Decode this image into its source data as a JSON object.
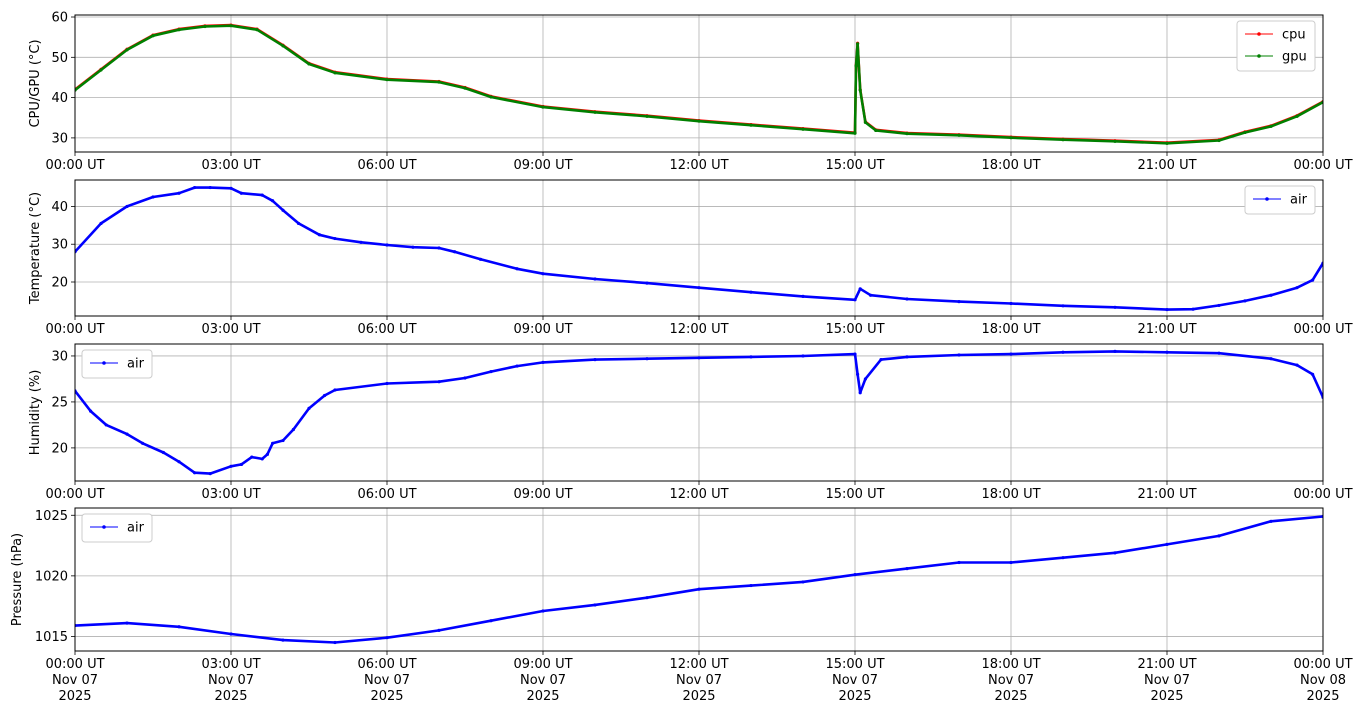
{
  "chart_data": [
    {
      "type": "line",
      "ylabel": "CPU/GPU (°C)",
      "ylim": [
        26.5,
        60.5
      ],
      "yticks": [
        30,
        40,
        50,
        60
      ],
      "x_hours": [
        0,
        24
      ],
      "xticks": [
        "00:00 UT",
        "03:00 UT",
        "06:00 UT",
        "09:00 UT",
        "12:00 UT",
        "15:00 UT",
        "18:00 UT",
        "21:00 UT",
        "00:00 UT"
      ],
      "grid": true,
      "legend": "upper-right",
      "series": [
        {
          "name": "cpu",
          "color": "#ff0000",
          "points": [
            [
              0,
              42
            ],
            [
              0.5,
              47
            ],
            [
              1,
              52
            ],
            [
              1.5,
              55.5
            ],
            [
              2,
              57
            ],
            [
              2.5,
              57.8
            ],
            [
              3,
              58
            ],
            [
              3.5,
              57
            ],
            [
              4,
              53
            ],
            [
              4.5,
              48.5
            ],
            [
              5,
              46.3
            ],
            [
              6,
              44.6
            ],
            [
              7,
              44
            ],
            [
              7.5,
              42.5
            ],
            [
              8,
              40.3
            ],
            [
              9,
              37.8
            ],
            [
              10,
              36.5
            ],
            [
              11,
              35.5
            ],
            [
              12,
              34.3
            ],
            [
              13,
              33.3
            ],
            [
              14,
              32.3
            ],
            [
              15,
              31.3
            ],
            [
              15.02,
              48
            ],
            [
              15.05,
              53.5
            ],
            [
              15.1,
              42
            ],
            [
              15.2,
              34
            ],
            [
              15.4,
              32
            ],
            [
              16,
              31.2
            ],
            [
              17,
              30.8
            ],
            [
              18,
              30.2
            ],
            [
              19,
              29.7
            ],
            [
              20,
              29.3
            ],
            [
              21,
              28.8
            ],
            [
              22,
              29.5
            ],
            [
              22.5,
              31.5
            ],
            [
              23,
              33
            ],
            [
              23.5,
              35.5
            ],
            [
              24,
              39
            ]
          ]
        },
        {
          "name": "gpu",
          "color": "#008000",
          "points": [
            [
              0,
              42
            ],
            [
              0.5,
              47
            ],
            [
              1,
              52
            ],
            [
              1.5,
              55.5
            ],
            [
              2,
              57
            ],
            [
              2.5,
              57.8
            ],
            [
              3,
              58
            ],
            [
              3.5,
              57
            ],
            [
              4,
              53
            ],
            [
              4.5,
              48.5
            ],
            [
              5,
              46.3
            ],
            [
              6,
              44.6
            ],
            [
              7,
              44
            ],
            [
              7.5,
              42.5
            ],
            [
              8,
              40.3
            ],
            [
              9,
              37.8
            ],
            [
              10,
              36.5
            ],
            [
              11,
              35.5
            ],
            [
              12,
              34.3
            ],
            [
              13,
              33.3
            ],
            [
              14,
              32.3
            ],
            [
              15,
              31.3
            ],
            [
              15.02,
              48
            ],
            [
              15.05,
              53.5
            ],
            [
              15.1,
              42
            ],
            [
              15.2,
              34
            ],
            [
              15.4,
              32
            ],
            [
              16,
              31.2
            ],
            [
              17,
              30.8
            ],
            [
              18,
              30.2
            ],
            [
              19,
              29.7
            ],
            [
              20,
              29.3
            ],
            [
              21,
              28.8
            ],
            [
              22,
              29.5
            ],
            [
              22.5,
              31.5
            ],
            [
              23,
              33
            ],
            [
              23.5,
              35.5
            ],
            [
              24,
              39
            ]
          ]
        }
      ]
    },
    {
      "type": "line",
      "ylabel": "Temperature (°C)",
      "ylim": [
        11,
        47
      ],
      "yticks": [
        20,
        30,
        40
      ],
      "x_hours": [
        0,
        24
      ],
      "xticks": [
        "00:00 UT",
        "03:00 UT",
        "06:00 UT",
        "09:00 UT",
        "12:00 UT",
        "15:00 UT",
        "18:00 UT",
        "21:00 UT",
        "00:00 UT"
      ],
      "grid": true,
      "legend": "upper-right",
      "series": [
        {
          "name": "air",
          "color": "#0000ff",
          "points": [
            [
              0,
              28
            ],
            [
              0.5,
              35.5
            ],
            [
              1,
              40
            ],
            [
              1.5,
              42.5
            ],
            [
              2,
              43.5
            ],
            [
              2.3,
              45
            ],
            [
              2.6,
              45
            ],
            [
              3,
              44.8
            ],
            [
              3.2,
              43.5
            ],
            [
              3.6,
              43
            ],
            [
              3.8,
              41.5
            ],
            [
              4,
              39
            ],
            [
              4.3,
              35.5
            ],
            [
              4.7,
              32.5
            ],
            [
              5,
              31.5
            ],
            [
              5.5,
              30.5
            ],
            [
              6,
              29.8
            ],
            [
              6.5,
              29.2
            ],
            [
              7,
              29
            ],
            [
              7.3,
              28
            ],
            [
              7.8,
              26
            ],
            [
              8.5,
              23.5
            ],
            [
              9,
              22.2
            ],
            [
              10,
              20.8
            ],
            [
              11,
              19.7
            ],
            [
              12,
              18.5
            ],
            [
              13,
              17.3
            ],
            [
              14,
              16.2
            ],
            [
              15,
              15.3
            ],
            [
              15.1,
              18.2
            ],
            [
              15.3,
              16.5
            ],
            [
              16,
              15.5
            ],
            [
              17,
              14.8
            ],
            [
              18,
              14.3
            ],
            [
              19,
              13.7
            ],
            [
              20,
              13.3
            ],
            [
              21,
              12.7
            ],
            [
              21.5,
              12.8
            ],
            [
              22,
              13.8
            ],
            [
              22.5,
              15
            ],
            [
              23,
              16.5
            ],
            [
              23.5,
              18.5
            ],
            [
              23.8,
              20.5
            ],
            [
              24,
              25
            ]
          ]
        }
      ]
    },
    {
      "type": "line",
      "ylabel": "Humidity (%)",
      "ylim": [
        16.4,
        31.3
      ],
      "yticks": [
        20,
        25,
        30
      ],
      "x_hours": [
        0,
        24
      ],
      "xticks": [
        "00:00 UT",
        "03:00 UT",
        "06:00 UT",
        "09:00 UT",
        "12:00 UT",
        "15:00 UT",
        "18:00 UT",
        "21:00 UT",
        "00:00 UT"
      ],
      "grid": true,
      "legend": "upper-left",
      "series": [
        {
          "name": "air",
          "color": "#0000ff",
          "points": [
            [
              0,
              26.2
            ],
            [
              0.3,
              24
            ],
            [
              0.6,
              22.5
            ],
            [
              1,
              21.5
            ],
            [
              1.3,
              20.5
            ],
            [
              1.7,
              19.5
            ],
            [
              2,
              18.5
            ],
            [
              2.3,
              17.3
            ],
            [
              2.6,
              17.2
            ],
            [
              3,
              18
            ],
            [
              3.2,
              18.2
            ],
            [
              3.4,
              19
            ],
            [
              3.6,
              18.8
            ],
            [
              3.7,
              19.3
            ],
            [
              3.8,
              20.5
            ],
            [
              4,
              20.8
            ],
            [
              4.2,
              22
            ],
            [
              4.5,
              24.3
            ],
            [
              4.8,
              25.7
            ],
            [
              5,
              26.3
            ],
            [
              6,
              27
            ],
            [
              7,
              27.2
            ],
            [
              7.5,
              27.6
            ],
            [
              8,
              28.3
            ],
            [
              8.5,
              28.9
            ],
            [
              9,
              29.3
            ],
            [
              10,
              29.6
            ],
            [
              11,
              29.7
            ],
            [
              12,
              29.8
            ],
            [
              13,
              29.9
            ],
            [
              14,
              30
            ],
            [
              15,
              30.2
            ],
            [
              15.05,
              28
            ],
            [
              15.1,
              26
            ],
            [
              15.2,
              27.5
            ],
            [
              15.5,
              29.6
            ],
            [
              16,
              29.9
            ],
            [
              17,
              30.1
            ],
            [
              18,
              30.2
            ],
            [
              19,
              30.4
            ],
            [
              20,
              30.5
            ],
            [
              21,
              30.4
            ],
            [
              22,
              30.3
            ],
            [
              23,
              29.7
            ],
            [
              23.5,
              29
            ],
            [
              23.8,
              28
            ],
            [
              24,
              25.5
            ]
          ]
        }
      ]
    },
    {
      "type": "line",
      "ylabel": "Pressure (hPa)",
      "ylim": [
        1013.8,
        1025.6
      ],
      "yticks": [
        1015,
        1020,
        1025
      ],
      "x_hours": [
        0,
        24
      ],
      "xticks": [
        "00:00 UT",
        "03:00 UT",
        "06:00 UT",
        "09:00 UT",
        "12:00 UT",
        "15:00 UT",
        "18:00 UT",
        "21:00 UT",
        "00:00 UT"
      ],
      "xticks_date": [
        "Nov 07",
        "Nov 07",
        "Nov 07",
        "Nov 07",
        "Nov 07",
        "Nov 07",
        "Nov 07",
        "Nov 07",
        "Nov 08"
      ],
      "xticks_year": [
        "2025",
        "2025",
        "2025",
        "2025",
        "2025",
        "2025",
        "2025",
        "2025",
        "2025"
      ],
      "grid": true,
      "legend": "upper-left",
      "series": [
        {
          "name": "air",
          "color": "#0000ff",
          "points": [
            [
              0,
              1015.9
            ],
            [
              1,
              1016.1
            ],
            [
              2,
              1015.8
            ],
            [
              3,
              1015.2
            ],
            [
              4,
              1014.7
            ],
            [
              5,
              1014.5
            ],
            [
              6,
              1014.9
            ],
            [
              7,
              1015.5
            ],
            [
              8,
              1016.3
            ],
            [
              9,
              1017.1
            ],
            [
              10,
              1017.6
            ],
            [
              11,
              1018.2
            ],
            [
              12,
              1018.9
            ],
            [
              13,
              1019.2
            ],
            [
              14,
              1019.5
            ],
            [
              15,
              1020.1
            ],
            [
              16,
              1020.6
            ],
            [
              17,
              1021.1
            ],
            [
              18,
              1021.1
            ],
            [
              19,
              1021.5
            ],
            [
              20,
              1021.9
            ],
            [
              21,
              1022.6
            ],
            [
              22,
              1023.3
            ],
            [
              23,
              1024.5
            ],
            [
              24,
              1024.9
            ]
          ]
        }
      ]
    }
  ]
}
